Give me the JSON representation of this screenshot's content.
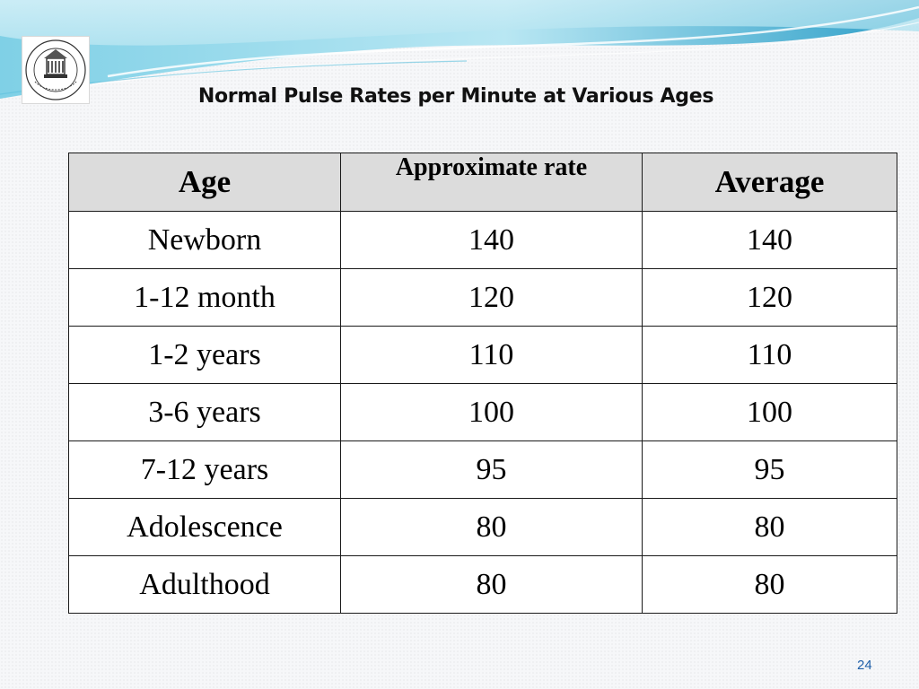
{
  "slide": {
    "title": "Normal Pulse Rates per Minute at Various Ages",
    "page_number": "24",
    "accent_colors": {
      "wave_light": "#cdeef6",
      "wave_mid": "#7fd0e6",
      "wave_dark": "#2e9fc8",
      "page_number": "#1f5fa8"
    }
  },
  "logo": {
    "icon": "university-seal-icon"
  },
  "table": {
    "headers": {
      "age": "Age",
      "rate": "Approximate rate",
      "average": "Average"
    },
    "rows": [
      {
        "age": "Newborn",
        "rate": "140",
        "average": "140"
      },
      {
        "age": "1-12 month",
        "rate": "120",
        "average": "120"
      },
      {
        "age": "1-2 years",
        "rate": "110",
        "average": "110"
      },
      {
        "age": "3-6 years",
        "rate": "100",
        "average": "100"
      },
      {
        "age": "7-12 years",
        "rate": "95",
        "average": "95"
      },
      {
        "age": "Adolescence",
        "rate": "80",
        "average": "80"
      },
      {
        "age": "Adulthood",
        "rate": "80",
        "average": "80"
      }
    ]
  }
}
